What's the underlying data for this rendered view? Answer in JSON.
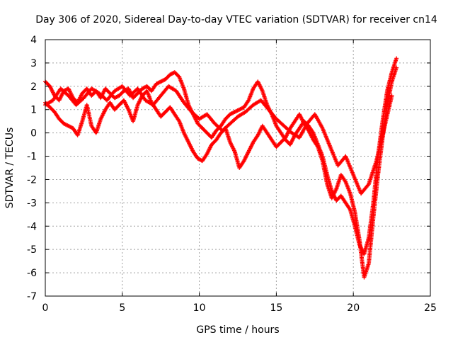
{
  "chart_data": {
    "type": "scatter",
    "title": "Day 306 of 2020, Sidereal Day-to-day VTEC variation (SDTVAR) for receiver cn14",
    "xlabel": "GPS time / hours",
    "ylabel": "SDTVAR / TECUs",
    "xlim": [
      0,
      25
    ],
    "ylim": [
      -7,
      4
    ],
    "xticks": [
      0,
      5,
      10,
      15,
      20,
      25
    ],
    "yticks": [
      4,
      3,
      2,
      1,
      0,
      -1,
      -2,
      -3,
      -4,
      -5,
      -6,
      -7
    ],
    "grid": true,
    "marker": "+",
    "color": "#ff0000",
    "series": [
      {
        "x": [
          0.0,
          0.3,
          0.6,
          0.9,
          1.2,
          1.5,
          1.8,
          2.1,
          2.4,
          2.7,
          3.0,
          3.3,
          3.6,
          3.9,
          4.2,
          4.5,
          4.8,
          5.1,
          5.4,
          5.7,
          6.0,
          6.3,
          6.6,
          6.9,
          7.2,
          7.5,
          7.8,
          8.1,
          8.4,
          8.7,
          9.0,
          9.3,
          9.6,
          9.9,
          10.2,
          10.5,
          10.8,
          11.1,
          11.4,
          11.7,
          12.0,
          12.3,
          12.6,
          12.9,
          13.2,
          13.5,
          13.8,
          14.1,
          14.4,
          14.7,
          15.0,
          15.3,
          15.6,
          15.9,
          16.2,
          16.5,
          16.8,
          17.1,
          17.4,
          17.7,
          18.0,
          18.3,
          18.6,
          18.9,
          19.2,
          19.5,
          19.8,
          20.1,
          20.4,
          20.7,
          21.0,
          21.3,
          21.6,
          21.9,
          22.2,
          22.5,
          22.8
        ],
        "y": [
          2.2,
          2.0,
          1.6,
          1.4,
          1.8,
          1.9,
          1.5,
          1.3,
          1.7,
          1.9,
          1.6,
          1.8,
          1.5,
          1.9,
          1.7,
          1.5,
          1.6,
          1.8,
          1.9,
          1.5,
          1.7,
          1.9,
          2.0,
          1.8,
          2.1,
          2.2,
          2.3,
          2.5,
          2.6,
          2.4,
          1.9,
          1.2,
          0.8,
          0.4,
          0.2,
          0.0,
          -0.2,
          0.1,
          0.3,
          0.6,
          0.8,
          0.9,
          1.0,
          1.1,
          1.4,
          1.9,
          2.2,
          1.8,
          1.2,
          0.8,
          0.3,
          0.0,
          -0.3,
          -0.5,
          -0.1,
          0.2,
          0.5,
          0.3,
          0.0,
          -0.5,
          -1.0,
          -1.8,
          -2.5,
          -2.9,
          -2.7,
          -3.0,
          -3.3,
          -4.0,
          -4.8,
          -5.2,
          -4.5,
          -3.0,
          -1.0,
          0.5,
          1.8,
          2.6,
          3.2
        ]
      },
      {
        "x": [
          0.0,
          0.3,
          0.6,
          0.9,
          1.2,
          1.5,
          1.8,
          2.1,
          2.4,
          2.7,
          3.0,
          3.3,
          3.6,
          3.9,
          4.2,
          4.5,
          4.8,
          5.1,
          5.4,
          5.7,
          6.0,
          6.3,
          6.6,
          6.9,
          7.2,
          7.5,
          7.8,
          8.1,
          8.4,
          8.7,
          9.0,
          9.3,
          9.6,
          9.9,
          10.2,
          10.5,
          10.8,
          11.1,
          11.4,
          11.7,
          12.0,
          12.3,
          12.6,
          12.9,
          13.2,
          13.5,
          13.8,
          14.1,
          14.4,
          14.7,
          15.0,
          15.3,
          15.6,
          15.9,
          16.2,
          16.5,
          16.8,
          17.1,
          17.4,
          17.7,
          18.0,
          18.3,
          18.6,
          18.9,
          19.2,
          19.5,
          19.8,
          20.1,
          20.4,
          20.7,
          21.0,
          21.3,
          21.6,
          21.9,
          22.2,
          22.5,
          22.8
        ],
        "y": [
          1.3,
          1.1,
          0.9,
          0.6,
          0.4,
          0.3,
          0.2,
          -0.1,
          0.5,
          1.2,
          0.3,
          0.0,
          0.6,
          1.0,
          1.3,
          1.0,
          1.2,
          1.4,
          1.0,
          0.5,
          1.2,
          1.6,
          1.8,
          1.3,
          1.0,
          0.7,
          0.9,
          1.1,
          0.8,
          0.5,
          0.0,
          -0.4,
          -0.8,
          -1.1,
          -1.2,
          -0.9,
          -0.5,
          -0.3,
          0.0,
          0.2,
          -0.4,
          -0.8,
          -1.5,
          -1.2,
          -0.8,
          -0.4,
          -0.1,
          0.3,
          0.0,
          -0.3,
          -0.6,
          -0.4,
          -0.2,
          0.2,
          0.5,
          0.8,
          0.4,
          0.1,
          -0.3,
          -0.6,
          -1.2,
          -2.2,
          -2.8,
          -2.4,
          -1.8,
          -2.1,
          -2.6,
          -3.4,
          -4.6,
          -6.2,
          -5.6,
          -3.6,
          -1.8,
          -0.2,
          1.2,
          2.2,
          2.8
        ]
      },
      {
        "x": [
          0.0,
          0.5,
          1.0,
          1.5,
          2.0,
          2.5,
          3.0,
          3.5,
          4.0,
          4.5,
          5.0,
          5.5,
          6.0,
          6.5,
          7.0,
          7.5,
          8.0,
          8.5,
          9.0,
          9.5,
          10.0,
          10.5,
          11.0,
          11.5,
          12.0,
          12.5,
          13.0,
          13.5,
          14.0,
          14.5,
          15.0,
          15.5,
          16.0,
          16.5,
          17.0,
          17.5,
          18.0,
          18.5,
          19.0,
          19.5,
          20.0,
          20.5,
          21.0,
          21.5,
          22.0,
          22.5
        ],
        "y": [
          1.2,
          1.4,
          1.9,
          1.6,
          1.2,
          1.5,
          1.9,
          1.7,
          1.4,
          1.8,
          2.0,
          1.6,
          1.9,
          1.4,
          1.2,
          1.6,
          2.0,
          1.8,
          1.3,
          0.9,
          0.6,
          0.8,
          0.4,
          0.1,
          0.4,
          0.7,
          0.9,
          1.2,
          1.4,
          1.0,
          0.6,
          0.3,
          0.0,
          -0.2,
          0.4,
          0.8,
          0.2,
          -0.6,
          -1.4,
          -1.0,
          -1.8,
          -2.6,
          -2.2,
          -1.2,
          0.2,
          1.6
        ]
      }
    ]
  }
}
